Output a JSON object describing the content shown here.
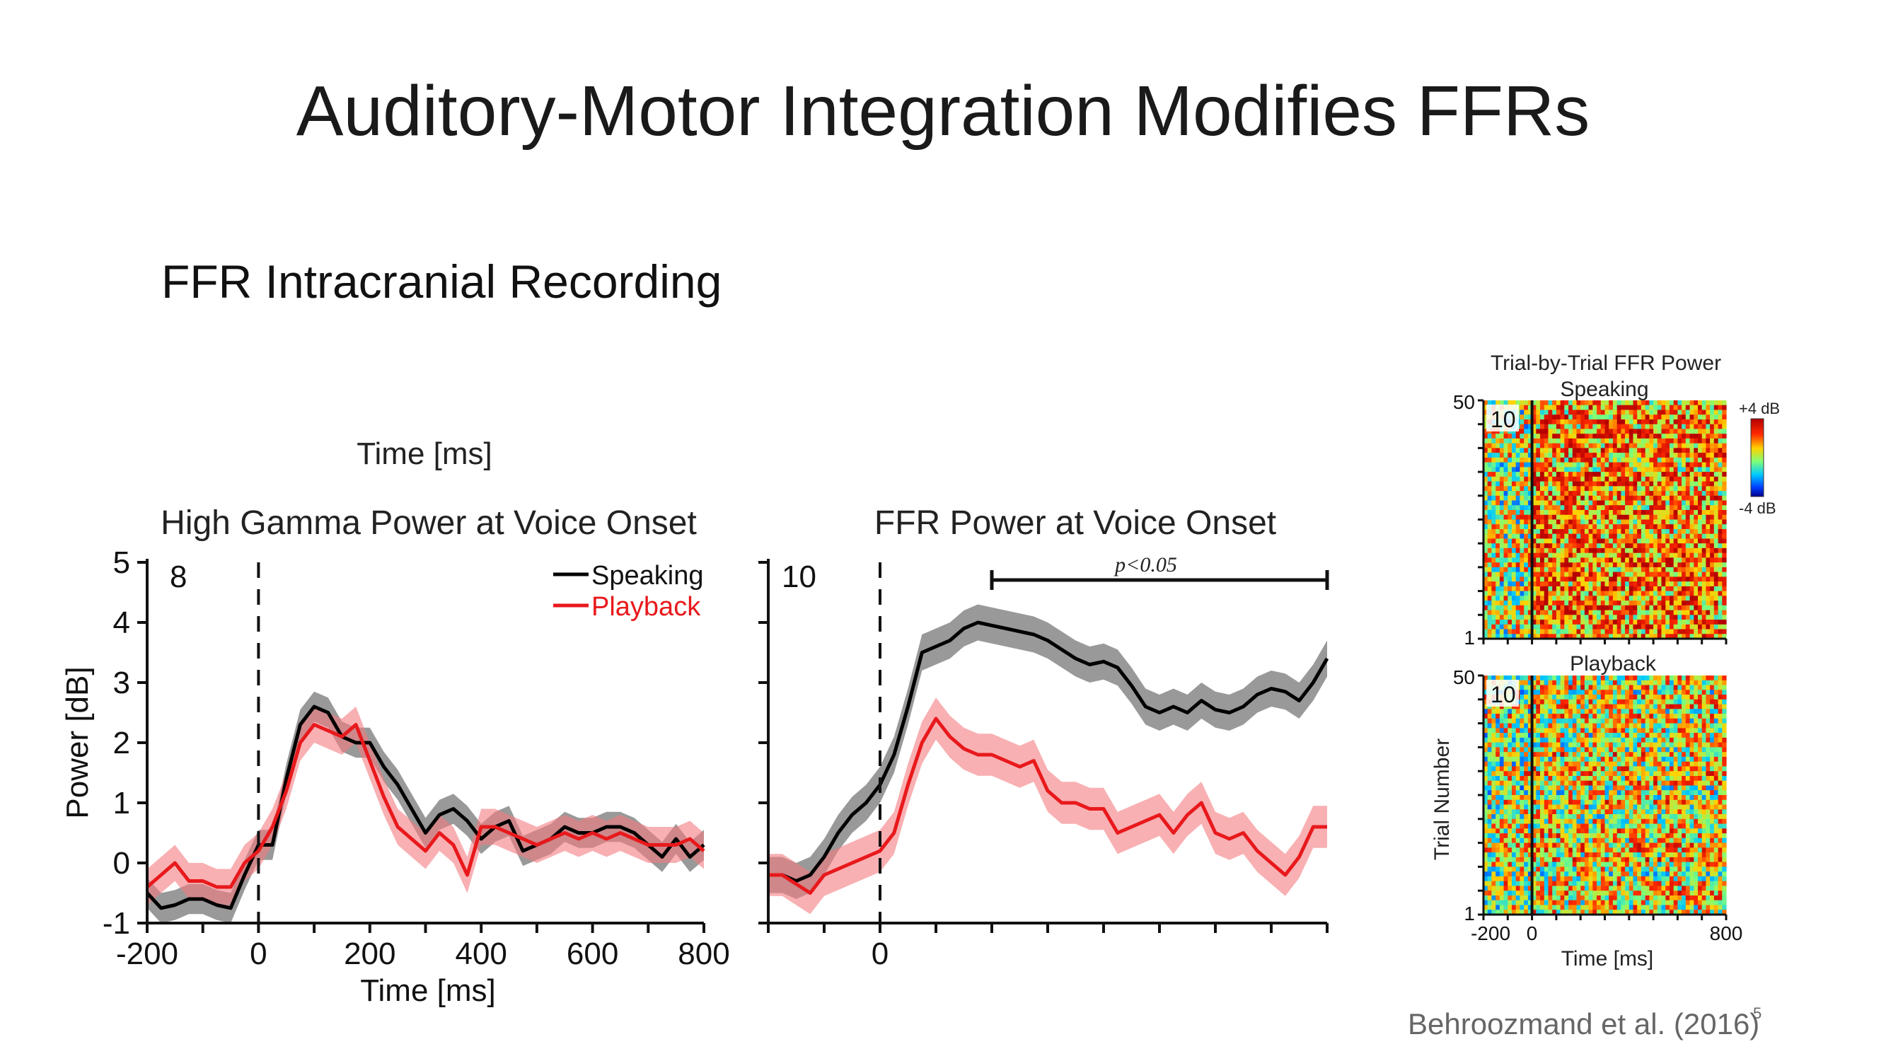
{
  "slide": {
    "title": "Auditory-Motor Integration Modifies FFRs",
    "subtitle": "FFR Intracranial Recording",
    "citation": "Behroozmand et al. (2016)",
    "slide_number": "5"
  },
  "chart_data": [
    {
      "type": "line",
      "panel_label": "8",
      "title": "High Gamma Power at Voice Onset",
      "header": "Time [ms]",
      "xlabel": "Time [ms]",
      "ylabel": "Power [dB]",
      "xlim": [
        -200,
        800
      ],
      "ylim": [
        -1,
        5
      ],
      "xticks": [
        -200,
        0,
        200,
        400,
        600,
        800
      ],
      "yticks": [
        -1,
        0,
        1,
        2,
        3,
        4,
        5
      ],
      "onset_marker_x": 0,
      "legend_position": "top-right",
      "series": [
        {
          "name": "Speaking",
          "color": "#000000",
          "band": 0.25,
          "x": [
            -200,
            -175,
            -150,
            -125,
            -100,
            -75,
            -50,
            -25,
            0,
            25,
            50,
            75,
            100,
            125,
            150,
            175,
            200,
            225,
            250,
            275,
            300,
            325,
            350,
            375,
            400,
            425,
            450,
            475,
            500,
            525,
            550,
            575,
            600,
            625,
            650,
            675,
            700,
            725,
            750,
            775,
            800
          ],
          "y": [
            -0.5,
            -0.75,
            -0.7,
            -0.6,
            -0.6,
            -0.7,
            -0.75,
            -0.2,
            0.3,
            0.3,
            1.4,
            2.3,
            2.6,
            2.5,
            2.1,
            2.0,
            2.0,
            1.6,
            1.3,
            0.9,
            0.5,
            0.8,
            0.9,
            0.7,
            0.4,
            0.6,
            0.7,
            0.2,
            0.3,
            0.4,
            0.6,
            0.5,
            0.5,
            0.6,
            0.6,
            0.5,
            0.3,
            0.1,
            0.4,
            0.1,
            0.3
          ]
        },
        {
          "name": "Playback",
          "color": "#e8191c",
          "band": 0.3,
          "x": [
            -200,
            -175,
            -150,
            -125,
            -100,
            -75,
            -50,
            -25,
            0,
            25,
            50,
            75,
            100,
            125,
            150,
            175,
            200,
            225,
            250,
            275,
            300,
            325,
            350,
            375,
            400,
            425,
            450,
            475,
            500,
            525,
            550,
            575,
            600,
            625,
            650,
            675,
            700,
            725,
            750,
            775,
            800
          ],
          "y": [
            -0.4,
            -0.2,
            0.0,
            -0.3,
            -0.3,
            -0.4,
            -0.4,
            0.0,
            0.2,
            0.6,
            1.2,
            2.0,
            2.3,
            2.2,
            2.1,
            2.3,
            1.7,
            1.1,
            0.6,
            0.4,
            0.2,
            0.5,
            0.3,
            -0.2,
            0.6,
            0.6,
            0.5,
            0.4,
            0.3,
            0.4,
            0.5,
            0.4,
            0.5,
            0.4,
            0.5,
            0.4,
            0.3,
            0.3,
            0.3,
            0.4,
            0.2
          ]
        }
      ]
    },
    {
      "type": "line",
      "panel_label": "10",
      "title": "FFR Power at Voice Onset",
      "annotation": "p<0.05",
      "significance_range": [
        200,
        800
      ],
      "xlim": [
        -200,
        800
      ],
      "ylim": [
        -1,
        5
      ],
      "xticks": [
        0
      ],
      "onset_marker_x": 0,
      "series": [
        {
          "name": "Speaking",
          "color": "#000000",
          "band": 0.3,
          "x": [
            -200,
            -175,
            -150,
            -125,
            -100,
            -75,
            -50,
            -25,
            0,
            25,
            50,
            75,
            100,
            125,
            150,
            175,
            200,
            225,
            250,
            275,
            300,
            325,
            350,
            375,
            400,
            425,
            450,
            475,
            500,
            525,
            550,
            575,
            600,
            625,
            650,
            675,
            700,
            725,
            750,
            775,
            800
          ],
          "y": [
            -0.2,
            -0.2,
            -0.3,
            -0.2,
            0.1,
            0.5,
            0.8,
            1.0,
            1.3,
            1.8,
            2.6,
            3.5,
            3.6,
            3.7,
            3.9,
            4.0,
            3.95,
            3.9,
            3.85,
            3.8,
            3.7,
            3.55,
            3.4,
            3.3,
            3.35,
            3.25,
            2.95,
            2.6,
            2.5,
            2.6,
            2.5,
            2.7,
            2.55,
            2.5,
            2.6,
            2.8,
            2.9,
            2.85,
            2.7,
            3.0,
            3.4
          ]
        },
        {
          "name": "Playback",
          "color": "#e8191c",
          "band": 0.35,
          "x": [
            -200,
            -175,
            -150,
            -125,
            -100,
            -75,
            -50,
            -25,
            0,
            25,
            50,
            75,
            100,
            125,
            150,
            175,
            200,
            225,
            250,
            275,
            300,
            325,
            350,
            375,
            400,
            425,
            450,
            475,
            500,
            525,
            550,
            575,
            600,
            625,
            650,
            675,
            700,
            725,
            750,
            775,
            800
          ],
          "y": [
            -0.2,
            -0.2,
            -0.35,
            -0.5,
            -0.2,
            -0.1,
            0.0,
            0.1,
            0.2,
            0.5,
            1.3,
            2.0,
            2.4,
            2.1,
            1.9,
            1.8,
            1.8,
            1.7,
            1.6,
            1.7,
            1.2,
            1.0,
            1.0,
            0.9,
            0.9,
            0.5,
            0.6,
            0.7,
            0.8,
            0.5,
            0.8,
            1.0,
            0.5,
            0.4,
            0.5,
            0.2,
            0.0,
            -0.2,
            0.1,
            0.6,
            0.6
          ]
        }
      ]
    },
    {
      "type": "heatmap",
      "title": "Trial-by-Trial FFR Power",
      "panels": [
        {
          "label": "Speaking",
          "panel_label": "10",
          "trials": 50,
          "onset_mean": 1.6
        },
        {
          "label": "Playback",
          "panel_label": "10",
          "trials": 50,
          "onset_mean": 0.6
        }
      ],
      "ylabel": "Trial Number",
      "xlabel": "Time [ms]",
      "xlim": [
        -200,
        800
      ],
      "xticks": [
        "-200",
        "0",
        "800"
      ],
      "yticks": [
        "1",
        "50"
      ],
      "colorbar": {
        "max": "+4 dB",
        "min": "-4 dB",
        "range": [
          -4,
          4
        ]
      }
    }
  ]
}
